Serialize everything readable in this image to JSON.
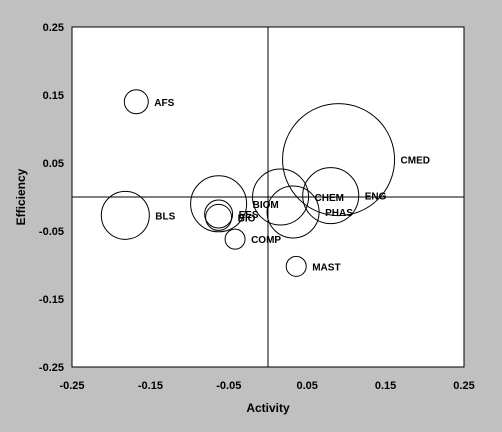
{
  "chart_data": {
    "type": "bubble",
    "xlabel": "Activity",
    "ylabel": "Efficiency",
    "xlim": [
      -0.25,
      0.25
    ],
    "ylim": [
      -0.25,
      0.25
    ],
    "xticks": [
      "-0.25",
      "-0.15",
      "-0.05",
      "0.05",
      "0.15",
      "0.25"
    ],
    "yticks": [
      "0.25",
      "0.15",
      "0.05",
      "-0.05",
      "-0.15",
      "-0.25"
    ],
    "grid": false,
    "reference_lines": {
      "x": 0,
      "y": 0
    },
    "colors": {
      "background": "#c0c0c0",
      "plot_area": "#ffffff",
      "stroke": "#000000"
    },
    "points": [
      {
        "label": "AFS",
        "x": -0.168,
        "y": 0.14,
        "size": 12
      },
      {
        "label": "BLS",
        "x": -0.182,
        "y": -0.027,
        "size": 24
      },
      {
        "label": "BIOM",
        "x": -0.063,
        "y": -0.01,
        "size": 28
      },
      {
        "label": "EES",
        "x": -0.063,
        "y": -0.025,
        "size": 14
      },
      {
        "label": "BIO",
        "x": -0.063,
        "y": -0.03,
        "size": 13
      },
      {
        "label": "COMP",
        "x": -0.042,
        "y": -0.062,
        "size": 10
      },
      {
        "label": "CHEM",
        "x": 0.016,
        "y": 0.0,
        "size": 28
      },
      {
        "label": "PHAS",
        "x": 0.032,
        "y": -0.022,
        "size": 26
      },
      {
        "label": "CMED",
        "x": 0.09,
        "y": 0.055,
        "size": 56
      },
      {
        "label": "ENG",
        "x": 0.08,
        "y": 0.002,
        "size": 28
      },
      {
        "label": "MAST",
        "x": 0.036,
        "y": -0.102,
        "size": 10
      }
    ]
  }
}
